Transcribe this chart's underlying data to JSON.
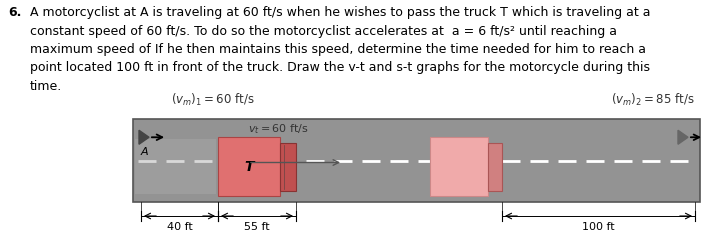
{
  "problem_number": "6.",
  "problem_text_lines": [
    "A motorcyclist at A is traveling at 60 ft/s when he wishes to pass the truck T which is traveling at a",
    "constant speed of 60 ft/s. To do so the motorcyclist accelerates at  a = 6 ft/s² until reaching a",
    "maximum speed of If he then maintains this speed, determine the time needed for him to reach a",
    "point located 100 ft in front of the truck. Draw the v-t and s-t graphs for the motorcycle during this",
    "time."
  ],
  "label_left": "$(v_m)_1 = 60$ ft/s",
  "label_right": "$(v_m)_2 = 85$ ft/s",
  "label_truck_speed": "$v_t = 60$ ft/s",
  "dim_left": "40 ft",
  "dim_mid": "55 ft",
  "dim_right": "100 ft",
  "road_color": "#939393",
  "road_border_color": "#555555",
  "truck_body_color": "#e07070",
  "truck_cab_color": "#c05050",
  "truck2_body_color": "#f0aaaa",
  "truck2_cab_color": "#d08080",
  "dash_color": "#ffffff",
  "text_color": "#000000",
  "annotation_color": "#333333",
  "fig_width": 7.09,
  "fig_height": 2.34,
  "dpi": 100
}
